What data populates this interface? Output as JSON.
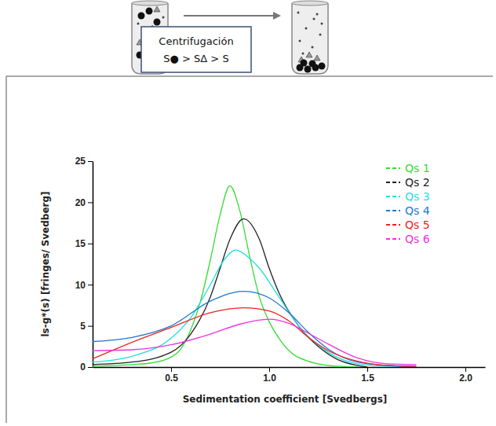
{
  "chart_data": {
    "type": "line",
    "annotations": [
      "Centrifugación",
      "S● > SΔ > S"
    ],
    "x_label": "Sedimentation coefficient [Svedbergs]",
    "y_label": "ls-g*(s) [fringes/ Svedberg]",
    "xlim": [
      0.1,
      2.1
    ],
    "ylim": [
      0,
      25
    ],
    "xticks": [
      0.5,
      {
        "value": 1.0,
        "label": "1.0"
      },
      1.5,
      {
        "value": 2.0,
        "label": "2.0"
      }
    ],
    "yticks": [
      0,
      5,
      10,
      15,
      20,
      25
    ],
    "grid": false,
    "legend": "upper right",
    "series": [
      {
        "name": "Qs 1",
        "color": "#33dd33",
        "x": [
          0.1,
          0.3,
          0.4,
          0.5,
          0.55,
          0.6,
          0.65,
          0.7,
          0.75,
          0.8,
          0.85,
          0.9,
          0.95,
          1.0,
          1.05,
          1.1,
          1.2,
          1.3,
          1.45
        ],
        "values": [
          0.1,
          0.3,
          0.5,
          1.2,
          2.2,
          4.5,
          8,
          13,
          18.5,
          22,
          19,
          13.5,
          8.5,
          5.5,
          3.5,
          2,
          0.7,
          0.2,
          0
        ]
      },
      {
        "name": "Qs 2",
        "color": "#222222",
        "x": [
          0.1,
          0.3,
          0.5,
          0.6,
          0.7,
          0.75,
          0.8,
          0.87,
          0.95,
          1.0,
          1.05,
          1.15,
          1.25,
          1.35,
          1.45,
          1.5
        ],
        "values": [
          0.3,
          0.6,
          1.8,
          4,
          8.5,
          12,
          15.5,
          18,
          15.5,
          12,
          9,
          5,
          2.5,
          0.9,
          0.2,
          0
        ]
      },
      {
        "name": "Qs 3",
        "color": "#22dddd",
        "x": [
          0.1,
          0.3,
          0.5,
          0.6,
          0.7,
          0.77,
          0.83,
          0.9,
          0.95,
          1.05,
          1.15,
          1.3,
          1.45,
          1.6,
          1.75
        ],
        "values": [
          0.6,
          1.3,
          3.5,
          6,
          10,
          13,
          14.2,
          13.2,
          12,
          8.5,
          5,
          1.8,
          0.4,
          0.1,
          0
        ]
      },
      {
        "name": "Qs 4",
        "color": "#2277cc",
        "x": [
          0.1,
          0.3,
          0.5,
          0.7,
          0.87,
          1.0,
          1.1,
          1.2,
          1.3,
          1.45,
          1.6,
          1.75
        ],
        "values": [
          3.1,
          3.6,
          5,
          8,
          9.2,
          8.4,
          6.6,
          4.2,
          2.2,
          0.6,
          0.2,
          0
        ]
      },
      {
        "name": "Qs 5",
        "color": "#ee2222",
        "x": [
          0.1,
          0.3,
          0.5,
          0.7,
          0.87,
          1.0,
          1.1,
          1.2,
          1.3,
          1.45,
          1.6,
          1.75
        ],
        "values": [
          1,
          3,
          4.8,
          6.6,
          7.2,
          6.8,
          5.6,
          3.6,
          2,
          0.7,
          0.2,
          0.1
        ]
      },
      {
        "name": "Qs 6",
        "color": "#ee33dd",
        "x": [
          0.1,
          0.3,
          0.5,
          0.7,
          0.85,
          1.0,
          1.1,
          1.2,
          1.3,
          1.45,
          1.6,
          1.75
        ],
        "values": [
          2,
          2.1,
          2.7,
          4,
          5.2,
          5.8,
          5.3,
          4.1,
          2.8,
          1.1,
          0.4,
          0.3
        ]
      }
    ]
  }
}
